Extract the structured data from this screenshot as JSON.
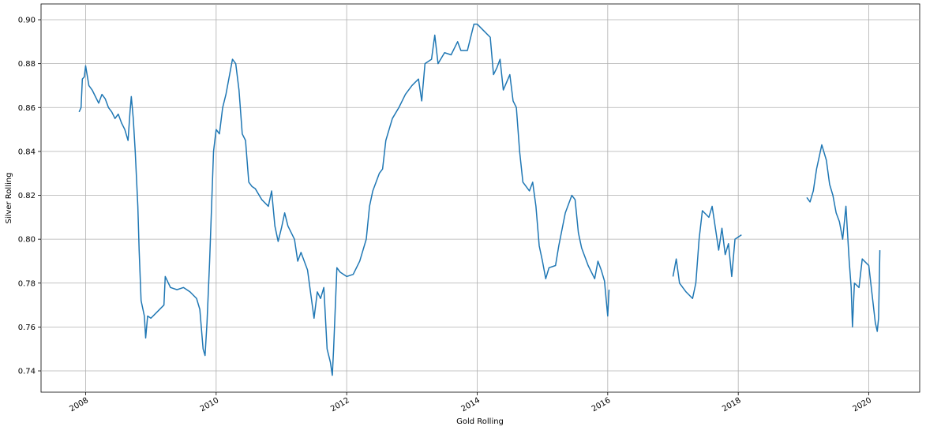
{
  "chart_data": {
    "type": "line",
    "xlabel": "Gold Rolling",
    "ylabel": "Silver Rolling",
    "color": "#1f77b4",
    "grid": true,
    "xlim": [
      2007.317,
      2020.78
    ],
    "ylim": [
      0.7303,
      0.9072
    ],
    "xticks": [
      2008,
      2010,
      2012,
      2014,
      2016,
      2018,
      2020
    ],
    "yticks": [
      0.74,
      0.76,
      0.78,
      {
        "value": 0.8,
        "label": "0.80"
      },
      0.82,
      0.84,
      0.86,
      0.88,
      {
        "value": 0.9,
        "label": "0.90"
      }
    ],
    "x": [
      2007.9,
      2007.93,
      2007.95,
      2007.98,
      2008.0,
      2008.05,
      2008.1,
      2008.15,
      2008.2,
      2008.25,
      2008.3,
      2008.35,
      2008.4,
      2008.45,
      2008.5,
      2008.55,
      2008.6,
      2008.65,
      2008.68,
      2008.7,
      2008.73,
      2008.76,
      2008.8,
      2008.82,
      2008.85,
      2008.9,
      2008.92,
      2008.95,
      2009.0,
      2009.1,
      2009.2,
      2009.22,
      2009.3,
      2009.4,
      2009.5,
      2009.6,
      2009.7,
      2009.75,
      2009.8,
      2009.83,
      2009.86,
      2009.9,
      2009.93,
      2009.96,
      2010.0,
      2010.05,
      2010.1,
      2010.15,
      2010.2,
      2010.25,
      2010.3,
      2010.35,
      2010.4,
      2010.45,
      2010.5,
      2010.55,
      2010.6,
      2010.7,
      2010.8,
      2010.85,
      2010.9,
      2010.95,
      2011.0,
      2011.05,
      2011.1,
      2011.2,
      2011.25,
      2011.3,
      2011.4,
      2011.45,
      2011.5,
      2011.55,
      2011.6,
      2011.65,
      2011.7,
      2011.75,
      2011.78,
      2011.8,
      2011.85,
      2011.9,
      2012.0,
      2012.1,
      2012.2,
      2012.3,
      2012.35,
      2012.4,
      2012.5,
      2012.55,
      2012.6,
      2012.7,
      2012.8,
      2012.9,
      2013.0,
      2013.1,
      2013.15,
      2013.2,
      2013.3,
      2013.35,
      2013.4,
      2013.5,
      2013.6,
      2013.7,
      2013.75,
      2013.85,
      2013.95,
      2014.0,
      2014.1,
      2014.2,
      2014.25,
      2014.3,
      2014.35,
      2014.4,
      2014.5,
      2014.55,
      2014.6,
      2014.65,
      2014.7,
      2014.8,
      2014.85,
      2014.9,
      2014.95,
      2015.0,
      2015.05,
      2015.1,
      2015.2,
      2015.25,
      2015.35,
      2015.45,
      2015.5,
      2015.55,
      2015.6,
      2015.7,
      2015.8,
      2015.85,
      2015.9,
      2015.95,
      2016.0,
      2016.02,
      2016.5,
      2017.0,
      2017.05,
      2017.1,
      2017.2,
      2017.3,
      2017.35,
      2017.4,
      2017.45,
      2017.55,
      2017.6,
      2017.65,
      2017.7,
      2017.75,
      2017.8,
      2017.85,
      2017.9,
      2017.95,
      2018.05,
      2018.6,
      2019.05,
      2019.1,
      2019.15,
      2019.2,
      2019.28,
      2019.35,
      2019.4,
      2019.45,
      2019.5,
      2019.55,
      2019.6,
      2019.65,
      2019.7,
      2019.73,
      2019.75,
      2019.78,
      2019.85,
      2019.9,
      2020.0,
      2020.05,
      2020.1,
      2020.13,
      2020.15,
      2020.17
    ],
    "values": [
      0.858,
      0.86,
      0.873,
      0.874,
      0.879,
      0.87,
      0.868,
      0.865,
      0.862,
      0.866,
      0.864,
      0.86,
      0.858,
      0.855,
      0.857,
      0.853,
      0.85,
      0.845,
      0.858,
      0.865,
      0.855,
      0.84,
      0.815,
      0.795,
      0.772,
      0.765,
      0.755,
      0.765,
      0.764,
      0.767,
      0.77,
      0.783,
      0.778,
      0.777,
      0.778,
      0.776,
      0.773,
      0.768,
      0.75,
      0.747,
      0.762,
      0.79,
      0.815,
      0.84,
      0.85,
      0.848,
      0.86,
      0.866,
      0.874,
      0.882,
      0.88,
      0.868,
      0.848,
      0.845,
      0.826,
      0.824,
      0.823,
      0.818,
      0.815,
      0.822,
      0.806,
      0.799,
      0.805,
      0.812,
      0.806,
      0.8,
      0.79,
      0.794,
      0.786,
      0.775,
      0.764,
      0.776,
      0.773,
      0.778,
      0.75,
      0.744,
      0.738,
      0.75,
      0.787,
      0.785,
      0.783,
      0.784,
      0.79,
      0.8,
      0.815,
      0.822,
      0.83,
      0.832,
      0.845,
      0.855,
      0.86,
      0.866,
      0.87,
      0.873,
      0.863,
      0.88,
      0.882,
      0.893,
      0.88,
      0.885,
      0.884,
      0.89,
      0.886,
      0.886,
      0.898,
      0.898,
      0.895,
      0.892,
      0.875,
      0.878,
      0.882,
      0.868,
      0.875,
      0.863,
      0.86,
      0.84,
      0.826,
      0.822,
      0.826,
      0.815,
      0.797,
      0.79,
      0.782,
      0.787,
      0.788,
      0.797,
      0.812,
      0.82,
      0.818,
      0.803,
      0.796,
      0.788,
      0.782,
      0.79,
      0.786,
      0.781,
      0.765,
      0.777,
      null,
      0.783,
      0.791,
      0.78,
      0.776,
      0.773,
      0.78,
      0.8,
      0.813,
      0.81,
      0.815,
      0.805,
      0.795,
      0.805,
      0.793,
      0.798,
      0.783,
      0.8,
      0.802,
      null,
      0.819,
      0.817,
      0.822,
      0.832,
      0.843,
      0.836,
      0.825,
      0.82,
      0.812,
      0.808,
      0.8,
      0.815,
      0.79,
      0.778,
      0.76,
      0.78,
      0.778,
      0.791,
      0.788,
      0.775,
      0.762,
      0.758,
      0.764,
      0.795
    ]
  }
}
